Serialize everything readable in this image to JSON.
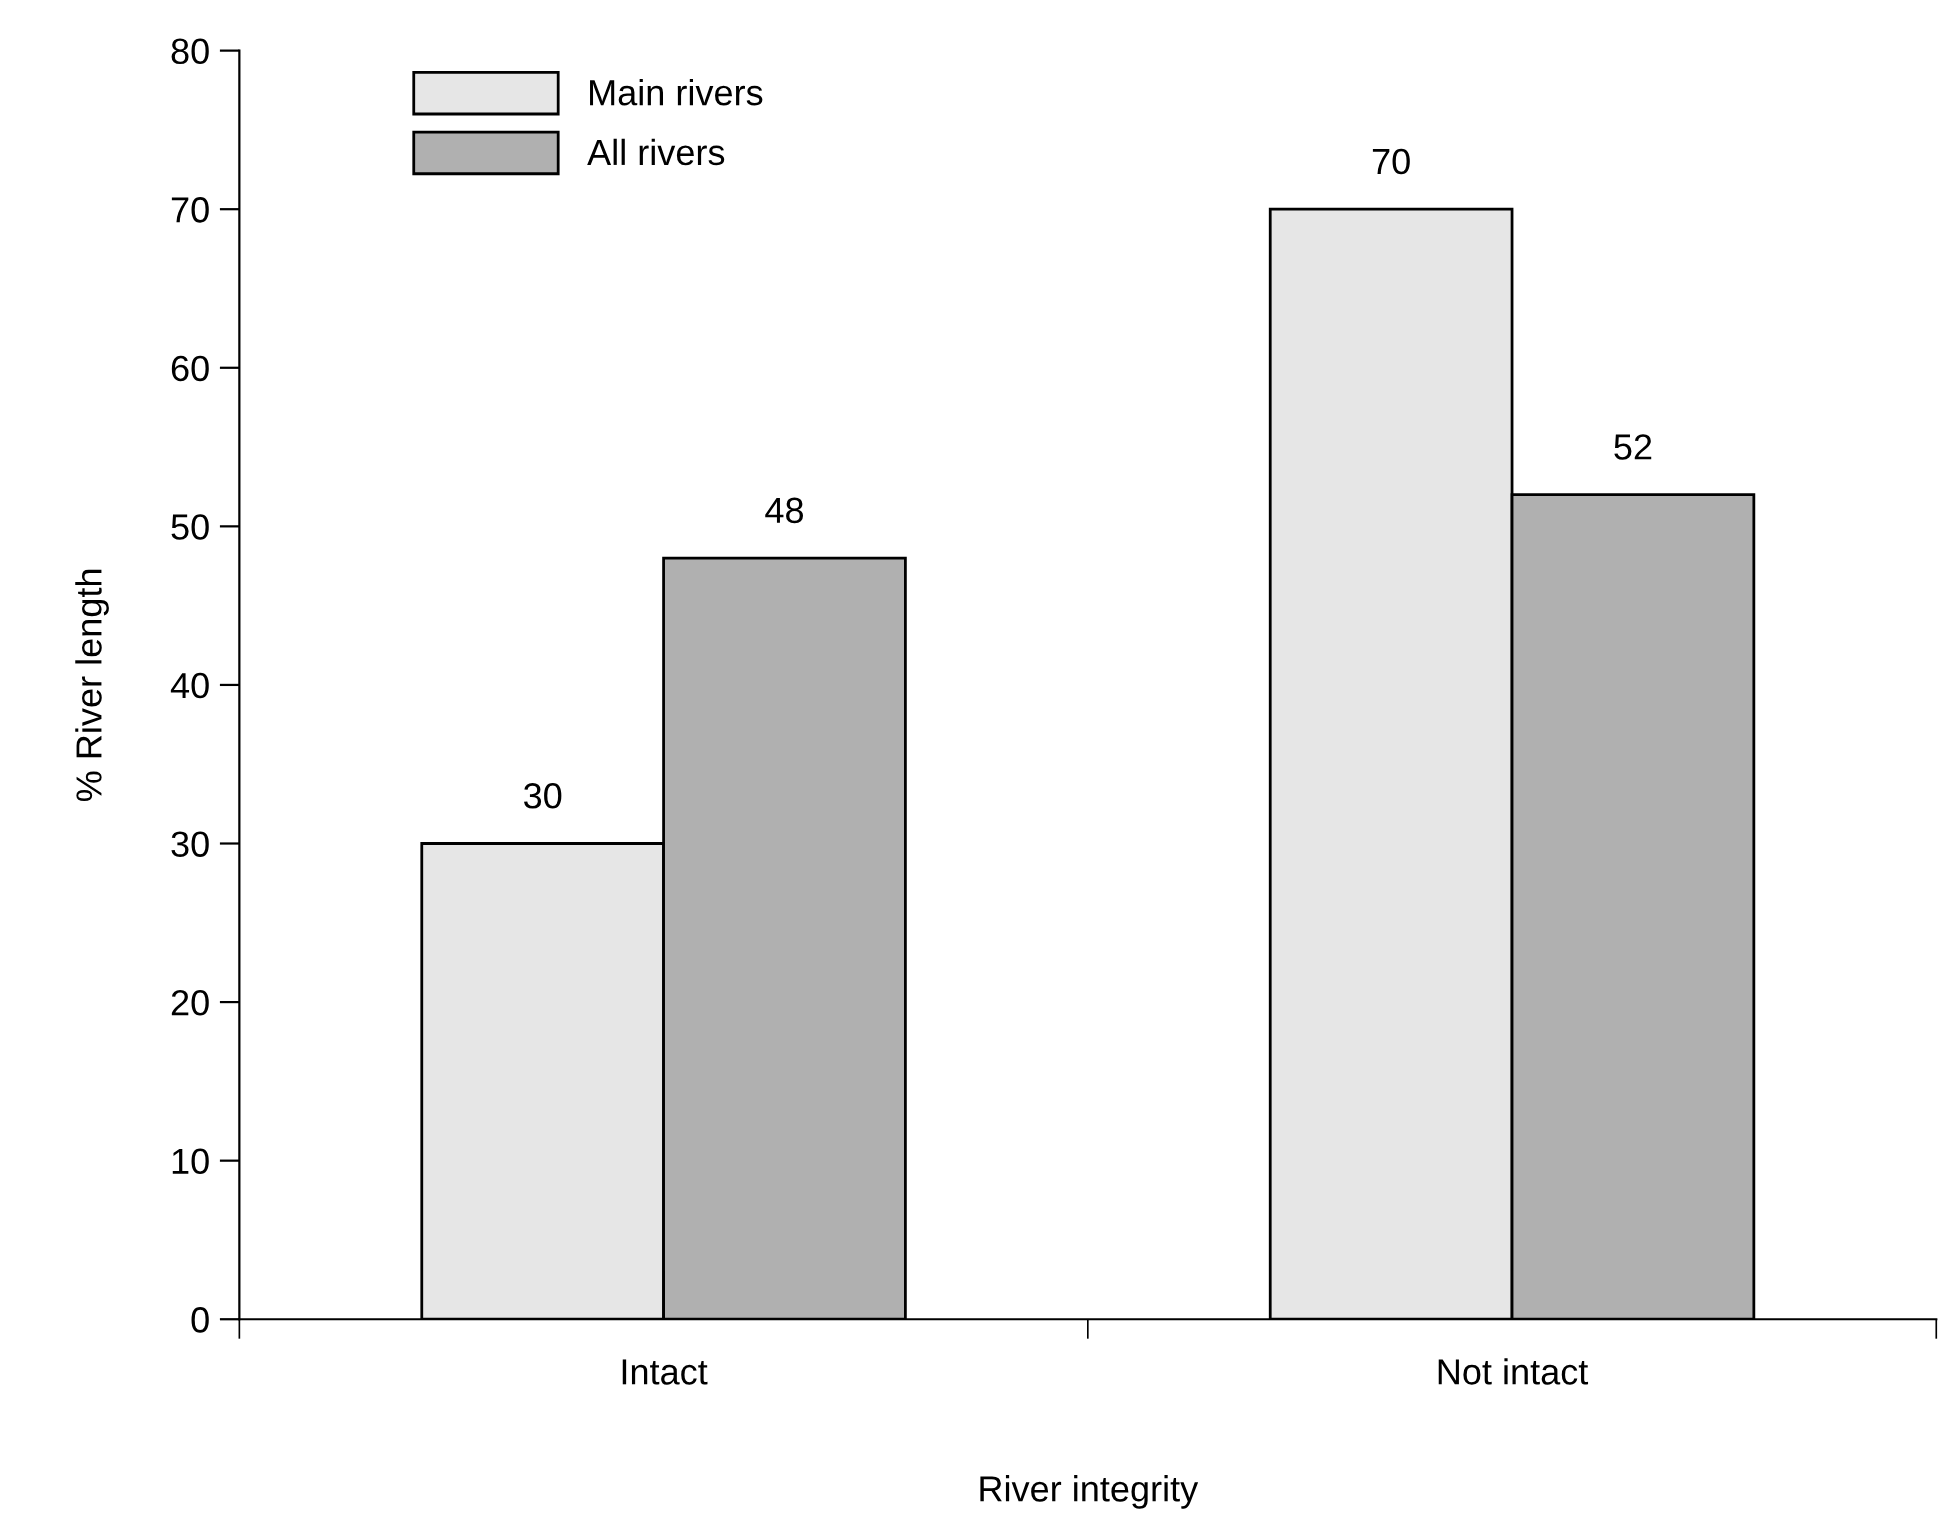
{
  "chart_data": {
    "type": "bar",
    "xlabel": "River integrity",
    "ylabel": "% River length",
    "categories": [
      "Intact",
      "Not intact"
    ],
    "series": [
      {
        "name": "Main rivers",
        "color": "#e6e6e6",
        "values": [
          30,
          70
        ]
      },
      {
        "name": "All rivers",
        "color": "#b0b0b0",
        "values": [
          48,
          52
        ]
      }
    ],
    "ylim": [
      0,
      80
    ],
    "yticks": [
      0,
      10,
      20,
      30,
      40,
      50,
      60,
      70,
      80
    ],
    "grid": false,
    "legend": "top left",
    "data_labels": true
  }
}
